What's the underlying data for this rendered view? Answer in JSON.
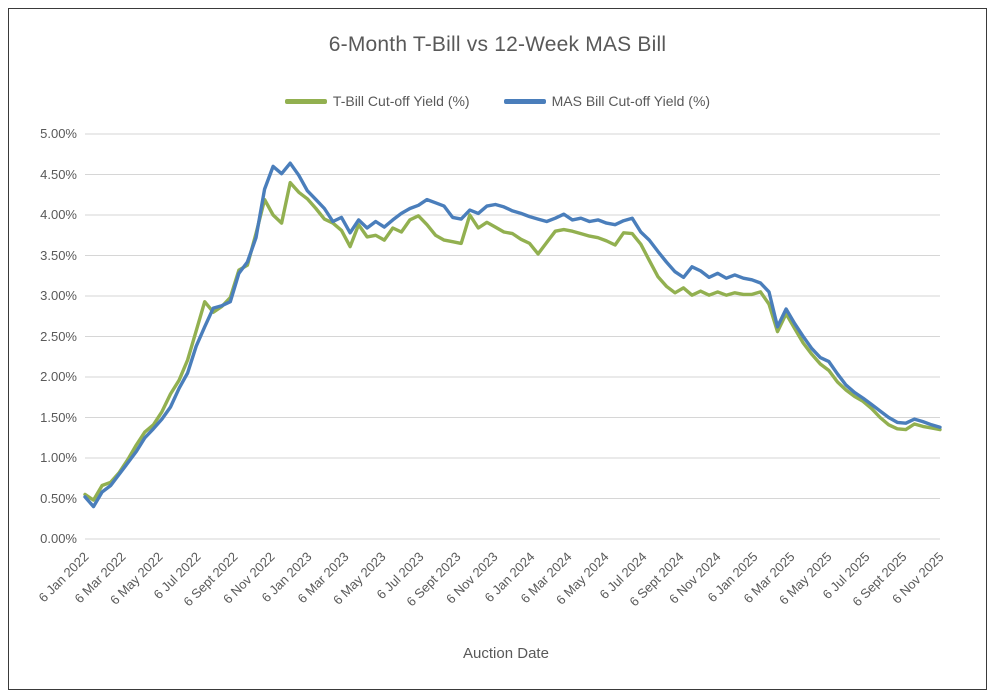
{
  "chart_data": {
    "type": "line",
    "title": "6-Month T-Bill vs 12-Week MAS Bill",
    "xlabel": "Auction Date",
    "ylabel": "",
    "ylim": [
      0,
      5
    ],
    "y_tick_step": 0.5,
    "y_tick_labels": [
      "0.00%",
      "0.50%",
      "1.00%",
      "1.50%",
      "2.00%",
      "2.50%",
      "3.00%",
      "3.50%",
      "4.00%",
      "4.50%",
      "5.00%"
    ],
    "x_tick_labels": [
      "6 Jan 2022",
      "6 Mar 2022",
      "6 May 2022",
      "6 Jul 2022",
      "6 Sept 2022",
      "6 Nov 2022",
      "6 Jan 2023",
      "6 Mar 2023",
      "6 May 2023",
      "6 Jul 2023",
      "6 Sept 2023",
      "6 Nov 2023",
      "6 Jan 2024",
      "6 Mar 2024",
      "6 May 2024",
      "6 Jul 2024",
      "6 Sept 2024",
      "6 Nov 2024",
      "6 Jan 2025",
      "6 Mar 2025",
      "6 May 2025",
      "6 Jul 2025",
      "6 Sept 2025",
      "6 Nov 2025"
    ],
    "grid": true,
    "legend_position": "top",
    "x": [
      "6 Jan 2022",
      "20 Jan 2022",
      "3 Feb 2022",
      "17 Feb 2022",
      "3 Mar 2022",
      "17 Mar 2022",
      "31 Mar 2022",
      "14 Apr 2022",
      "28 Apr 2022",
      "12 May 2022",
      "26 May 2022",
      "9 Jun 2022",
      "23 Jun 2022",
      "7 Jul 2022",
      "21 Jul 2022",
      "4 Aug 2022",
      "18 Aug 2022",
      "1 Sept 2022",
      "15 Sept 2022",
      "29 Sept 2022",
      "13 Oct 2022",
      "27 Oct 2022",
      "10 Nov 2022",
      "24 Nov 2022",
      "8 Dec 2022",
      "22 Dec 2022",
      "5 Jan 2023",
      "19 Jan 2023",
      "2 Feb 2023",
      "16 Feb 2023",
      "2 Mar 2023",
      "16 Mar 2023",
      "30 Mar 2023",
      "13 Apr 2023",
      "27 Apr 2023",
      "11 May 2023",
      "25 May 2023",
      "8 Jun 2023",
      "22 Jun 2023",
      "6 Jul 2023",
      "20 Jul 2023",
      "3 Aug 2023",
      "17 Aug 2023",
      "31 Aug 2023",
      "14 Sept 2023",
      "28 Sept 2023",
      "12 Oct 2023",
      "26 Oct 2023",
      "9 Nov 2023",
      "23 Nov 2023",
      "7 Dec 2023",
      "21 Dec 2023",
      "4 Jan 2024",
      "18 Jan 2024",
      "1 Feb 2024",
      "15 Feb 2024",
      "29 Feb 2024",
      "14 Mar 2024",
      "28 Mar 2024",
      "11 Apr 2024",
      "25 Apr 2024",
      "9 May 2024",
      "23 May 2024",
      "6 Jun 2024",
      "20 Jun 2024",
      "4 Jul 2024",
      "18 Jul 2024",
      "1 Aug 2024",
      "15 Aug 2024",
      "29 Aug 2024",
      "12 Sept 2024",
      "26 Sept 2024",
      "10 Oct 2024",
      "24 Oct 2024",
      "7 Nov 2024",
      "21 Nov 2024",
      "5 Dec 2024",
      "19 Dec 2024",
      "2 Jan 2025",
      "16 Jan 2025",
      "30 Jan 2025",
      "13 Feb 2025",
      "27 Feb 2025",
      "13 Mar 2025",
      "27 Mar 2025",
      "10 Apr 2025",
      "24 Apr 2025",
      "8 May 2025",
      "22 May 2025",
      "5 Jun 2025",
      "19 Jun 2025",
      "3 Jul 2025",
      "17 Jul 2025",
      "31 Jul 2025",
      "14 Aug 2025",
      "28 Aug 2025",
      "11 Sept 2025",
      "25 Sept 2025",
      "9 Oct 2025",
      "23 Oct 2025",
      "6 Nov 2025"
    ],
    "series": [
      {
        "name": "T-Bill Cut-off Yield (%)",
        "color": "#92b050",
        "values": [
          0.55,
          0.48,
          0.66,
          0.7,
          0.82,
          0.98,
          1.16,
          1.32,
          1.41,
          1.57,
          1.79,
          1.96,
          2.21,
          2.57,
          2.93,
          2.8,
          2.87,
          2.98,
          3.32,
          3.38,
          3.77,
          4.19,
          4.0,
          3.9,
          4.4,
          4.28,
          4.2,
          4.08,
          3.95,
          3.9,
          3.81,
          3.61,
          3.88,
          3.73,
          3.75,
          3.69,
          3.84,
          3.79,
          3.94,
          3.99,
          3.88,
          3.75,
          3.69,
          3.67,
          3.65,
          4.0,
          3.84,
          3.91,
          3.85,
          3.79,
          3.77,
          3.7,
          3.65,
          3.52,
          3.66,
          3.8,
          3.82,
          3.8,
          3.77,
          3.74,
          3.72,
          3.68,
          3.63,
          3.78,
          3.77,
          3.64,
          3.44,
          3.24,
          3.12,
          3.04,
          3.1,
          3.01,
          3.06,
          3.01,
          3.05,
          3.01,
          3.04,
          3.02,
          3.02,
          3.05,
          2.9,
          2.56,
          2.78,
          2.6,
          2.42,
          2.28,
          2.16,
          2.08,
          1.94,
          1.84,
          1.76,
          1.7,
          1.61,
          1.5,
          1.41,
          1.36,
          1.35,
          1.42,
          1.39,
          1.37,
          1.35
        ]
      },
      {
        "name": "MAS Bill Cut-off Yield (%)",
        "color": "#4a7ebb",
        "values": [
          0.52,
          0.4,
          0.58,
          0.66,
          0.8,
          0.94,
          1.08,
          1.25,
          1.36,
          1.48,
          1.63,
          1.86,
          2.05,
          2.38,
          2.62,
          2.85,
          2.88,
          2.93,
          3.28,
          3.42,
          3.72,
          4.32,
          4.6,
          4.51,
          4.64,
          4.49,
          4.3,
          4.19,
          4.08,
          3.92,
          3.97,
          3.78,
          3.94,
          3.84,
          3.92,
          3.85,
          3.94,
          4.02,
          4.08,
          4.12,
          4.19,
          4.15,
          4.11,
          3.97,
          3.95,
          4.06,
          4.02,
          4.11,
          4.13,
          4.1,
          4.05,
          4.02,
          3.98,
          3.95,
          3.92,
          3.96,
          4.01,
          3.94,
          3.96,
          3.92,
          3.94,
          3.9,
          3.88,
          3.93,
          3.96,
          3.79,
          3.69,
          3.55,
          3.42,
          3.3,
          3.23,
          3.36,
          3.31,
          3.23,
          3.28,
          3.22,
          3.26,
          3.22,
          3.2,
          3.16,
          3.05,
          2.62,
          2.84,
          2.66,
          2.5,
          2.35,
          2.24,
          2.19,
          2.04,
          1.9,
          1.81,
          1.74,
          1.66,
          1.58,
          1.5,
          1.44,
          1.43,
          1.48,
          1.45,
          1.41,
          1.38
        ]
      }
    ]
  },
  "style": {
    "grid_color": "#d6d6d6",
    "text_color": "#595959"
  }
}
